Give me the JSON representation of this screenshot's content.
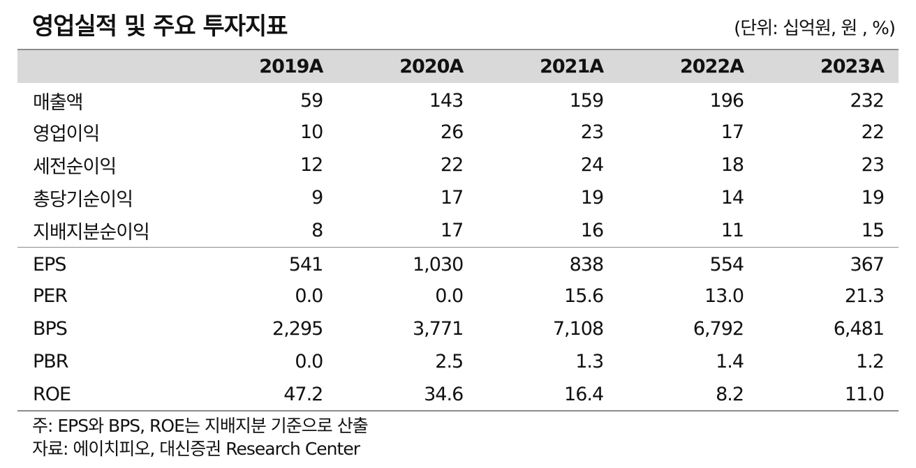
{
  "title": "영업실적 및 주요 투자지표",
  "unit": "(단위: 십억원, 원 , %)",
  "table": {
    "years": [
      "2019A",
      "2020A",
      "2021A",
      "2022A",
      "2023A"
    ],
    "income_rows": [
      {
        "label": "매출액",
        "values": [
          "59",
          "143",
          "159",
          "196",
          "232"
        ]
      },
      {
        "label": "영업이익",
        "values": [
          "10",
          "26",
          "23",
          "17",
          "22"
        ]
      },
      {
        "label": "세전순이익",
        "values": [
          "12",
          "22",
          "24",
          "18",
          "23"
        ]
      },
      {
        "label": "총당기순이익",
        "values": [
          "9",
          "17",
          "19",
          "14",
          "19"
        ]
      },
      {
        "label": "지배지분순이익",
        "values": [
          "8",
          "17",
          "16",
          "11",
          "15"
        ]
      }
    ],
    "indicator_rows": [
      {
        "label": "EPS",
        "values": [
          "541",
          "1,030",
          "838",
          "554",
          "367"
        ]
      },
      {
        "label": "PER",
        "values": [
          "0.0",
          "0.0",
          "15.6",
          "13.0",
          "21.3"
        ]
      },
      {
        "label": "BPS",
        "values": [
          "2,295",
          "3,771",
          "7,108",
          "6,792",
          "6,481"
        ]
      },
      {
        "label": "PBR",
        "values": [
          "0.0",
          "2.5",
          "1.3",
          "1.4",
          "1.2"
        ]
      },
      {
        "label": "ROE",
        "values": [
          "47.2",
          "34.6",
          "16.4",
          "8.2",
          "11.0"
        ]
      }
    ]
  },
  "notes": {
    "note": "주: EPS와 BPS, ROE는 지배지분 기준으로 산출",
    "source": "자료: 에이치피오, 대신증권 Research Center"
  }
}
